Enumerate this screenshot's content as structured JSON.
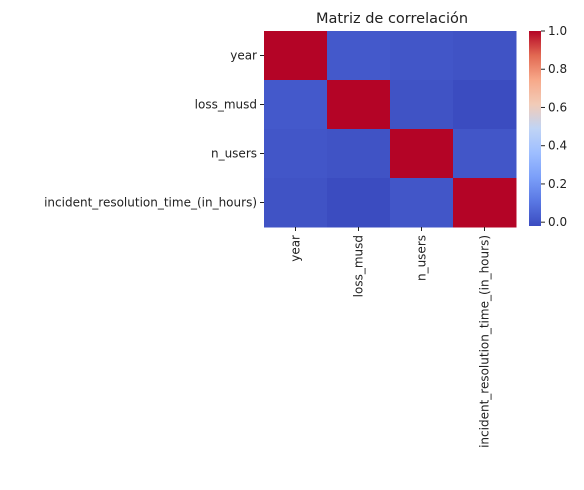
{
  "chart_data": {
    "type": "heatmap",
    "title": "Matriz de correlación",
    "xlabel": "",
    "ylabel": "",
    "rows": [
      "year",
      "loss_musd",
      "n_users",
      "incident_resolution_time_(in_hours)"
    ],
    "columns": [
      "year",
      "loss_musd",
      "n_users",
      "incident_resolution_time_(in_hours)"
    ],
    "values": [
      [
        1.0,
        0.02,
        0.01,
        0.0
      ],
      [
        0.02,
        1.0,
        0.0,
        -0.02
      ],
      [
        0.01,
        0.0,
        1.0,
        0.01
      ],
      [
        0.0,
        -0.02,
        0.01,
        1.0
      ]
    ],
    "colormap": "coolwarm",
    "colorbar": {
      "range": [
        -0.02,
        1.0
      ],
      "ticks": [
        "0.0",
        "0.2",
        "0.4",
        "0.6",
        "0.8",
        "1.0"
      ],
      "tick_values": [
        0.0,
        0.2,
        0.4,
        0.6,
        0.8,
        1.0
      ],
      "placement": "right"
    },
    "grid": false
  }
}
